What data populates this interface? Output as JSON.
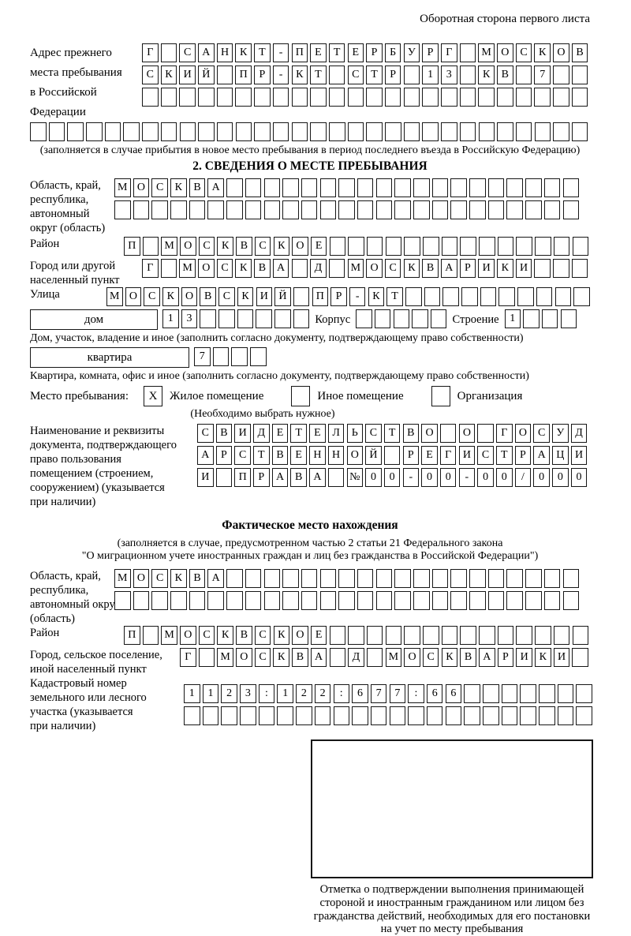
{
  "page": {
    "header_note": "Оборотная сторона первого листа"
  },
  "prev_address": {
    "label": "Адрес прежнего\nместа пребывания\nв Российской\nФедерации",
    "rows": {
      "r1": "Г САНКТ-ПЕТЕРБУРГ МОСКОВ",
      "r2": "СКИЙ ПР-КТ СТР 13 КВ 7",
      "r3": "",
      "r4": ""
    },
    "note": "(заполняется в случае прибытия в новое место пребывания в период последнего въезда в Российскую Федерацию)"
  },
  "section2": {
    "title": "2. СВЕДЕНИЯ О МЕСТЕ ПРЕБЫВАНИЯ",
    "oblast": {
      "label": "Область, край,\nреспублика,\nавтономный\nокруг (область)",
      "r1": "МОСКВА",
      "r2": ""
    },
    "rayon": {
      "label": "Район",
      "value": "П МОСКВСКОЕ"
    },
    "gorod": {
      "label": "Город или другой\nнаселенный пункт",
      "value": "Г МОСКВА Д МОСКВАРИКИ"
    },
    "ulitsa": {
      "label": "Улица",
      "value": "МОСКОВСКИЙ ПР-КТ"
    },
    "dom": {
      "label": "дом",
      "value": "13",
      "korpus_label": "Корпус",
      "korpus": "",
      "stroenie_label": "Строение",
      "stroenie": "1",
      "note": "Дом, участок, владение и иное (заполнить согласно документу, подтверждающему право собственности)"
    },
    "kvartira": {
      "label": "квартира",
      "value": "7",
      "note": "Квартира, комната, офис и иное (заполнить согласно документу, подтверждающему право собственности)"
    },
    "mesto": {
      "label": "Место пребывания:",
      "zhiloe_mark": "X",
      "zhiloe_label": "Жилое помещение",
      "inoe_mark": "",
      "inoe_label": "Иное помещение",
      "org_mark": "",
      "org_label": "Организация",
      "note": "(Необходимо выбрать нужное)"
    },
    "document": {
      "label": "Наименование и реквизиты\nдокумента, подтверждающего\nправо пользования\nпомещением (строением,\nсооружением) (указывается\nпри наличии)",
      "r1": "СВИДЕТЕЛЬСТВО О ГОСУД",
      "r2": "АРСТВЕННОЙ РЕГИСТРАЦИ",
      "r3": "И ПРАВА №00-00-00/000"
    }
  },
  "fact": {
    "title": "Фактическое место нахождения",
    "note1": "(заполняется в случае, предусмотренном частью 2 статьи 21 Федерального закона",
    "note2": "\"О миграционном учете иностранных граждан и лиц без гражданства в Российской Федерации\")",
    "oblast": {
      "label": "Область, край,\nреспублика,\nавтономный округ\n(область)",
      "r1": "МОСКВА",
      "r2": ""
    },
    "rayon": {
      "label": "Район",
      "value": "П МОСКВСКОЕ"
    },
    "gorod": {
      "label": "Город, сельское поселение,\nиной населенный пункт",
      "value": "Г МОСКВА Д МОСКВАРИКИ"
    },
    "kadastr": {
      "label": "Кадастровый номер\nземельного или лесного\nучастка (указывается\nпри наличии)",
      "r1": "1123:122:677:66",
      "r2": ""
    },
    "stamp_caption": "Отметка о подтверждении выполнения принимающей\nстороной и иностранным гражданином или лицом без\nгражданства действий, необходимых для его постановки\nна учет по месту пребывания"
  }
}
